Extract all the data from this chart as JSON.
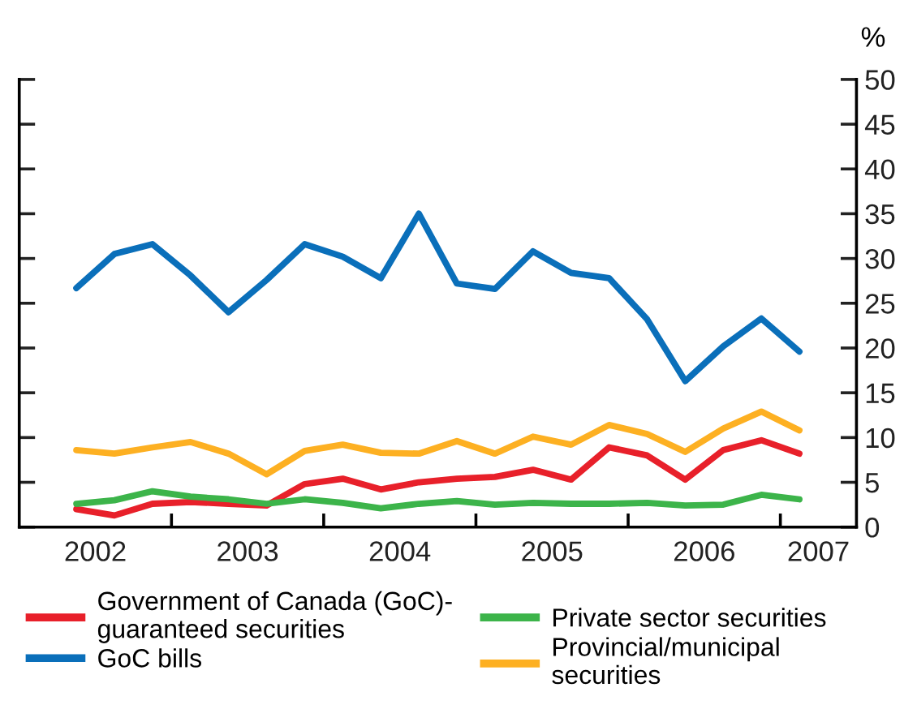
{
  "chart_data": {
    "type": "line",
    "ylabel": "%",
    "x": [
      2002.375,
      2002.625,
      2002.875,
      2003.125,
      2003.375,
      2003.625,
      2003.875,
      2004.125,
      2004.375,
      2004.625,
      2004.875,
      2005.125,
      2005.375,
      2005.625,
      2005.875,
      2006.125,
      2006.375,
      2006.625,
      2006.875,
      2007.125
    ],
    "xlim": [
      2002,
      2007.5
    ],
    "xticks": [
      {
        "value": 2002.5,
        "label": "2002"
      },
      {
        "value": 2003,
        "label": null
      },
      {
        "value": 2003.5,
        "label": "2003"
      },
      {
        "value": 2004,
        "label": null
      },
      {
        "value": 2004.5,
        "label": "2004"
      },
      {
        "value": 2005,
        "label": null
      },
      {
        "value": 2005.5,
        "label": "2005"
      },
      {
        "value": 2006,
        "label": null
      },
      {
        "value": 2006.5,
        "label": "2006"
      },
      {
        "value": 2007,
        "label": null
      },
      {
        "value": 2007.25,
        "label": "2007"
      }
    ],
    "ylim": [
      0,
      50
    ],
    "yticks": [
      0,
      5,
      10,
      15,
      20,
      25,
      30,
      35,
      40,
      45,
      50
    ],
    "grid": false,
    "legend": "bottom",
    "marker": "none",
    "line_style": "solid",
    "series": [
      {
        "name": "Government of Canada (GoC)-\nguaranteed securities",
        "color": "#e8202a",
        "values": [
          2.0,
          1.3,
          2.6,
          2.8,
          2.6,
          2.4,
          4.8,
          5.4,
          4.2,
          5.0,
          5.4,
          5.6,
          6.4,
          5.3,
          8.9,
          8.0,
          5.3,
          8.6,
          9.7,
          8.2
        ]
      },
      {
        "name": "GoC bills",
        "color": "#0a6fba",
        "values": [
          26.7,
          30.5,
          31.6,
          28.1,
          24.0,
          27.6,
          31.6,
          30.2,
          27.8,
          35.0,
          27.2,
          26.6,
          30.8,
          28.4,
          27.8,
          23.2,
          16.3,
          20.2,
          23.3,
          19.6
        ]
      },
      {
        "name": "Private sector securities",
        "color": "#3cb44a",
        "values": [
          2.6,
          3.0,
          4.0,
          3.4,
          3.1,
          2.6,
          3.1,
          2.7,
          2.1,
          2.6,
          2.9,
          2.5,
          2.7,
          2.6,
          2.6,
          2.7,
          2.4,
          2.5,
          3.6,
          3.1
        ]
      },
      {
        "name": "Provincial/municipal\nsecurities",
        "color": "#fdb022",
        "values": [
          8.6,
          8.2,
          8.9,
          9.5,
          8.2,
          5.9,
          8.5,
          9.2,
          8.3,
          8.2,
          9.6,
          8.2,
          10.1,
          9.2,
          11.4,
          10.4,
          8.4,
          11.0,
          12.9,
          10.8
        ]
      }
    ]
  }
}
